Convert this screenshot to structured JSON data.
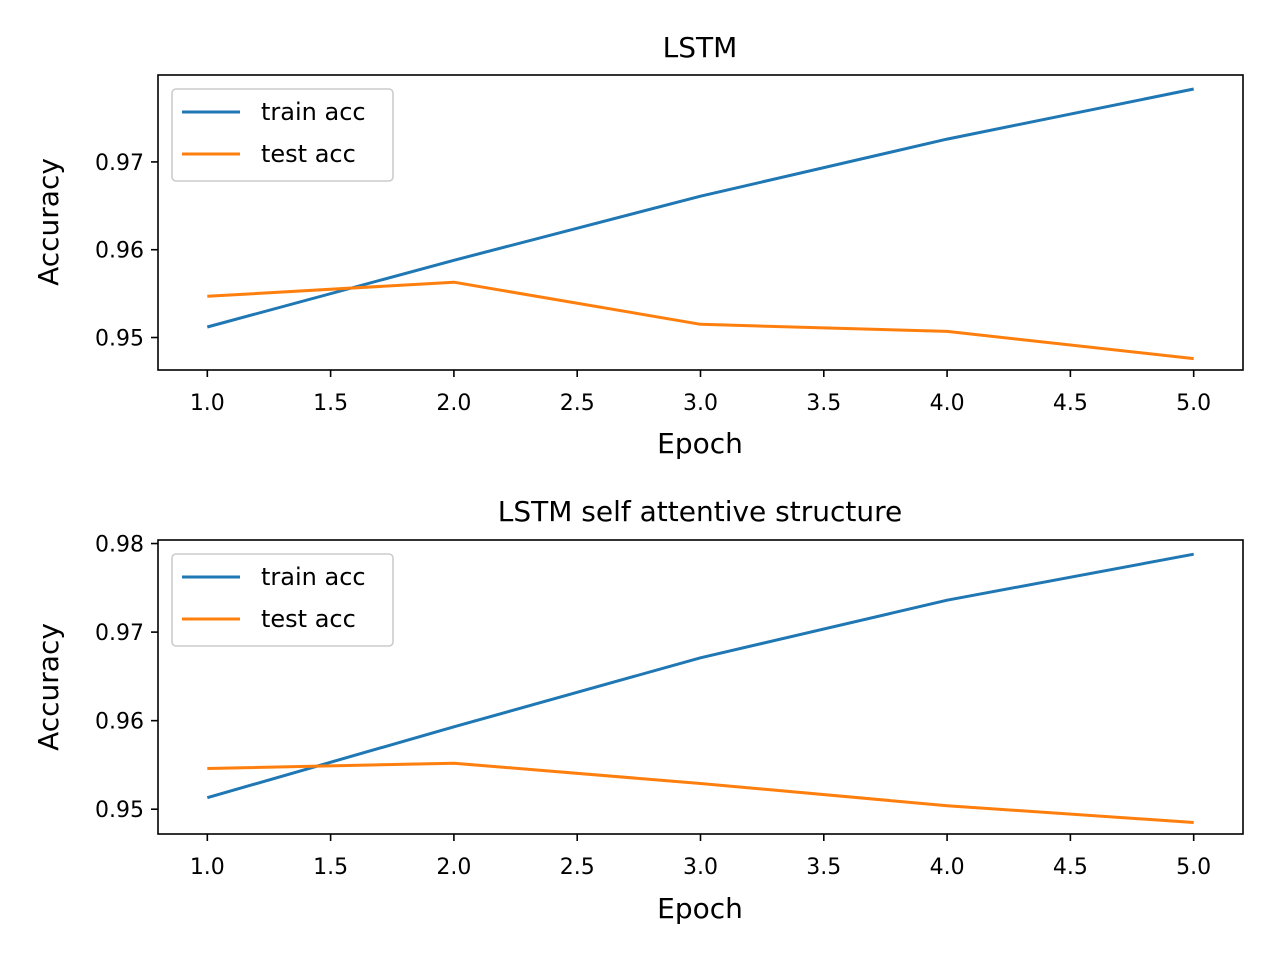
{
  "chart_data": [
    {
      "type": "line",
      "title": "LSTM",
      "xlabel": "Epoch",
      "ylabel": "Accuracy",
      "x": [
        1,
        2,
        3,
        4,
        5
      ],
      "xlim": [
        0.8,
        5.2
      ],
      "ylim": [
        0.9463,
        0.9799
      ],
      "xticks": [
        1.0,
        1.5,
        2.0,
        2.5,
        3.0,
        3.5,
        4.0,
        4.5,
        5.0
      ],
      "xtick_labels": [
        "1.0",
        "1.5",
        "2.0",
        "2.5",
        "3.0",
        "3.5",
        "4.0",
        "4.5",
        "5.0"
      ],
      "yticks": [
        0.95,
        0.96,
        0.97
      ],
      "ytick_labels": [
        "0.95",
        "0.96",
        "0.97"
      ],
      "grid": false,
      "legend_position": "top-left",
      "series": [
        {
          "name": "train acc",
          "color": "#1f77b4",
          "values": [
            0.9512,
            0.9588,
            0.9661,
            0.9726,
            0.9783
          ]
        },
        {
          "name": "test acc",
          "color": "#ff7f0e",
          "values": [
            0.9547,
            0.9563,
            0.9515,
            0.9507,
            0.9476
          ]
        }
      ]
    },
    {
      "type": "line",
      "title": "LSTM self attentive structure",
      "xlabel": "Epoch",
      "ylabel": "Accuracy",
      "x": [
        1,
        2,
        3,
        4,
        5
      ],
      "xlim": [
        0.8,
        5.2
      ],
      "ylim": [
        0.9472,
        0.9804
      ],
      "xticks": [
        1.0,
        1.5,
        2.0,
        2.5,
        3.0,
        3.5,
        4.0,
        4.5,
        5.0
      ],
      "xtick_labels": [
        "1.0",
        "1.5",
        "2.0",
        "2.5",
        "3.0",
        "3.5",
        "4.0",
        "4.5",
        "5.0"
      ],
      "yticks": [
        0.95,
        0.96,
        0.97,
        0.98
      ],
      "ytick_labels": [
        "0.95",
        "0.96",
        "0.97",
        "0.98"
      ],
      "grid": false,
      "legend_position": "top-left",
      "series": [
        {
          "name": "train acc",
          "color": "#1f77b4",
          "values": [
            0.9513,
            0.9593,
            0.9671,
            0.9736,
            0.9788
          ]
        },
        {
          "name": "test acc",
          "color": "#ff7f0e",
          "values": [
            0.9546,
            0.9552,
            0.9529,
            0.9504,
            0.9485
          ]
        }
      ]
    }
  ]
}
